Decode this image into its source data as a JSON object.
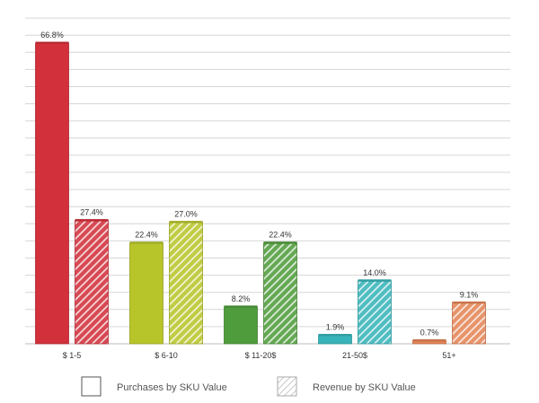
{
  "chart_data": {
    "type": "bar",
    "categories": [
      "$ 1-5",
      "$ 6-10",
      "$ 11-20$",
      "21-50$",
      "51+"
    ],
    "series": [
      {
        "name": "Purchases by SKU Value",
        "values": [
          66.8,
          22.4,
          8.2,
          1.9,
          0.7
        ],
        "value_labels": [
          "66.8%",
          "22.4%",
          "8.2%",
          "1.9%",
          "0.7%"
        ],
        "pattern": "solid"
      },
      {
        "name": "Revenue by SKU Value",
        "values": [
          27.4,
          27.0,
          22.4,
          14.0,
          9.1
        ],
        "value_labels": [
          "27.4%",
          "27.0%",
          "22.4%",
          "14.0%",
          "9.1%"
        ],
        "pattern": "hatched"
      }
    ],
    "category_colors": [
      "#d2303b",
      "#b7c52a",
      "#4f9c3c",
      "#37b4b9",
      "#e48456"
    ],
    "ylim": [
      0,
      70
    ],
    "grid": true,
    "legend_position": "bottom"
  }
}
